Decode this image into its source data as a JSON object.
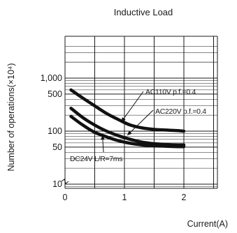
{
  "chart_data": {
    "type": "line",
    "title": "Inductive Load",
    "xlabel": "Current(A)",
    "ylabel": "Number of operations(×10⁴)",
    "xlim": [
      0,
      2.5
    ],
    "ylim": [
      7,
      4000
    ],
    "yscale": "log",
    "grid": true,
    "x_ticks": [
      {
        "value": 0,
        "label": "0"
      },
      {
        "value": 1,
        "label": "1"
      },
      {
        "value": 2,
        "label": "2"
      }
    ],
    "y_ticks": [
      {
        "value": 10,
        "label": "10"
      },
      {
        "value": 50,
        "label": "50"
      },
      {
        "value": 100,
        "label": "100"
      },
      {
        "value": 500,
        "label": "500"
      },
      {
        "value": 1000,
        "label": "1,000"
      }
    ],
    "series": [
      {
        "name": "AC110V p.f.=0.4",
        "x": [
          0.1,
          0.3,
          0.5,
          0.7,
          0.9,
          1.1,
          1.3,
          1.5,
          1.7,
          1.9,
          2.0
        ],
        "y": [
          600,
          420,
          300,
          215,
          165,
          130,
          115,
          108,
          105,
          102,
          100
        ]
      },
      {
        "name": "AC220V p.f.=0.4",
        "x": [
          0.1,
          0.3,
          0.5,
          0.7,
          0.9,
          1.1,
          1.3,
          1.5,
          1.7,
          1.9,
          2.0
        ],
        "y": [
          270,
          180,
          130,
          100,
          82,
          70,
          62,
          58,
          56,
          55,
          55
        ]
      },
      {
        "name": "DC24V L/R=7ms",
        "x": [
          0.1,
          0.3,
          0.5,
          0.7,
          0.9,
          1.1,
          1.3,
          1.5,
          1.7,
          1.9,
          2.0
        ],
        "y": [
          190,
          130,
          95,
          78,
          66,
          59,
          55,
          53,
          52,
          51,
          51
        ]
      }
    ],
    "annotations": [
      {
        "text": "AC110V p.f.=0.4",
        "series": 0
      },
      {
        "text": "AC220V p.f.=0.4",
        "series": 1
      },
      {
        "text": "DC24V L/R=7ms",
        "series": 2
      }
    ],
    "line_color": "#111111"
  }
}
